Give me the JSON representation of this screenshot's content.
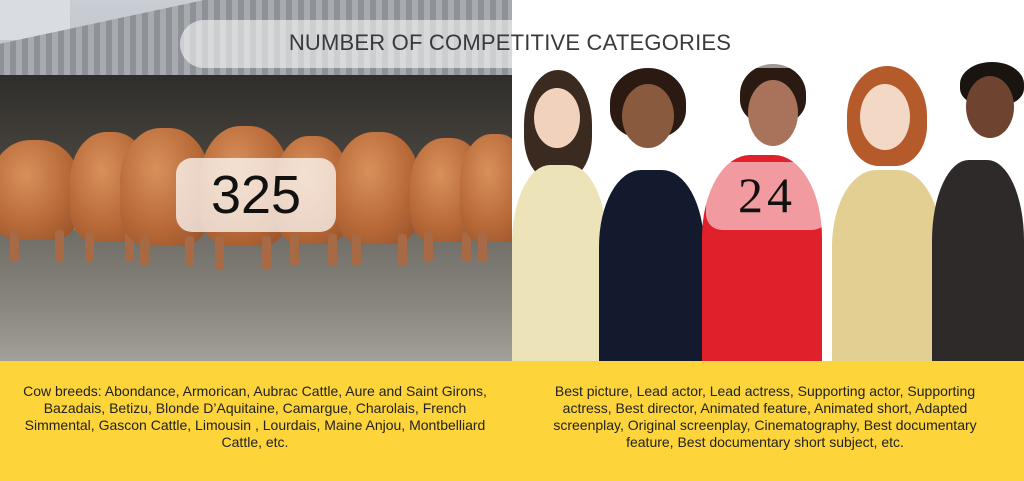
{
  "title": "NUMBER OF COMPETITIVE CATEGORIES",
  "left": {
    "count": "325",
    "description": "Cow breeds: Abondance, Armorican,  Aubrac Cattle, Aure and Saint Girons, Bazadais, Betizu, Blonde D’Aquitaine, Camargue, Charolais, French Simmental, Gascon Cattle, Limousin , Lourdais, Maine Anjou, Montbelliard Cattle, etc."
  },
  "right": {
    "count": "24",
    "description": "Best picture, Lead actor, Lead actress, Supporting actor, Supporting actress, Best director, Animated feature, Animated short, Adapted screenplay, Original screenplay, Cinematography, Best documentary feature, Best documentary short subject, etc."
  },
  "colors": {
    "panel": "#fdd43a",
    "text": "#222222"
  }
}
